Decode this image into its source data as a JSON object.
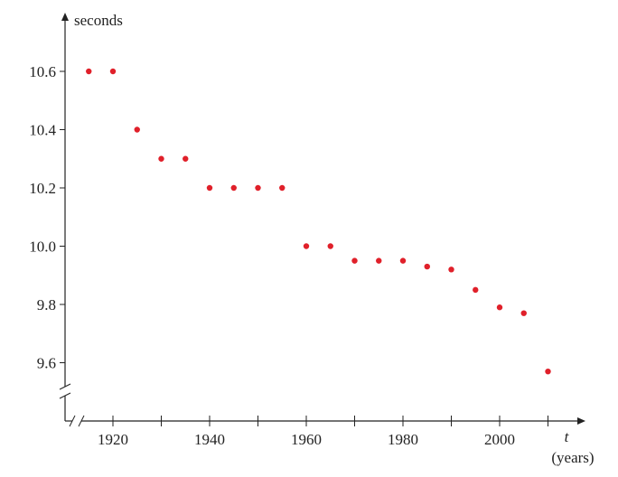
{
  "chart_data": {
    "type": "scatter",
    "xlabel": "t",
    "xunit": "(years)",
    "ylabel": "seconds",
    "xlim": [
      1910,
      2013
    ],
    "ylim": [
      9.45,
      10.78
    ],
    "x_ticks": [
      1910,
      1920,
      1930,
      1940,
      1950,
      1960,
      1970,
      1980,
      1990,
      2000,
      2010
    ],
    "x_tick_labels": [
      "1920",
      "1940",
      "1960",
      "1980",
      "2000"
    ],
    "x_tick_label_values": [
      1920,
      1940,
      1960,
      1980,
      2000
    ],
    "y_ticks": [
      9.6,
      9.8,
      10.0,
      10.2,
      10.4,
      10.6
    ],
    "y_tick_labels": [
      "9.6",
      "9.8",
      "10.0",
      "10.2",
      "10.4",
      "10.6"
    ],
    "grid": false,
    "axis_breaks": true,
    "point_color": "#e0202a",
    "series": [
      {
        "x": [
          1915,
          1920,
          1925,
          1930,
          1935,
          1940,
          1945,
          1950,
          1955,
          1960,
          1965,
          1970,
          1975,
          1980,
          1985,
          1990,
          1995,
          2000,
          2005,
          2010
        ],
        "y": [
          10.6,
          10.6,
          10.4,
          10.3,
          10.3,
          10.2,
          10.2,
          10.2,
          10.2,
          10.0,
          10.0,
          9.95,
          9.95,
          9.95,
          9.93,
          9.92,
          9.85,
          9.79,
          9.77,
          9.57
        ]
      }
    ]
  }
}
